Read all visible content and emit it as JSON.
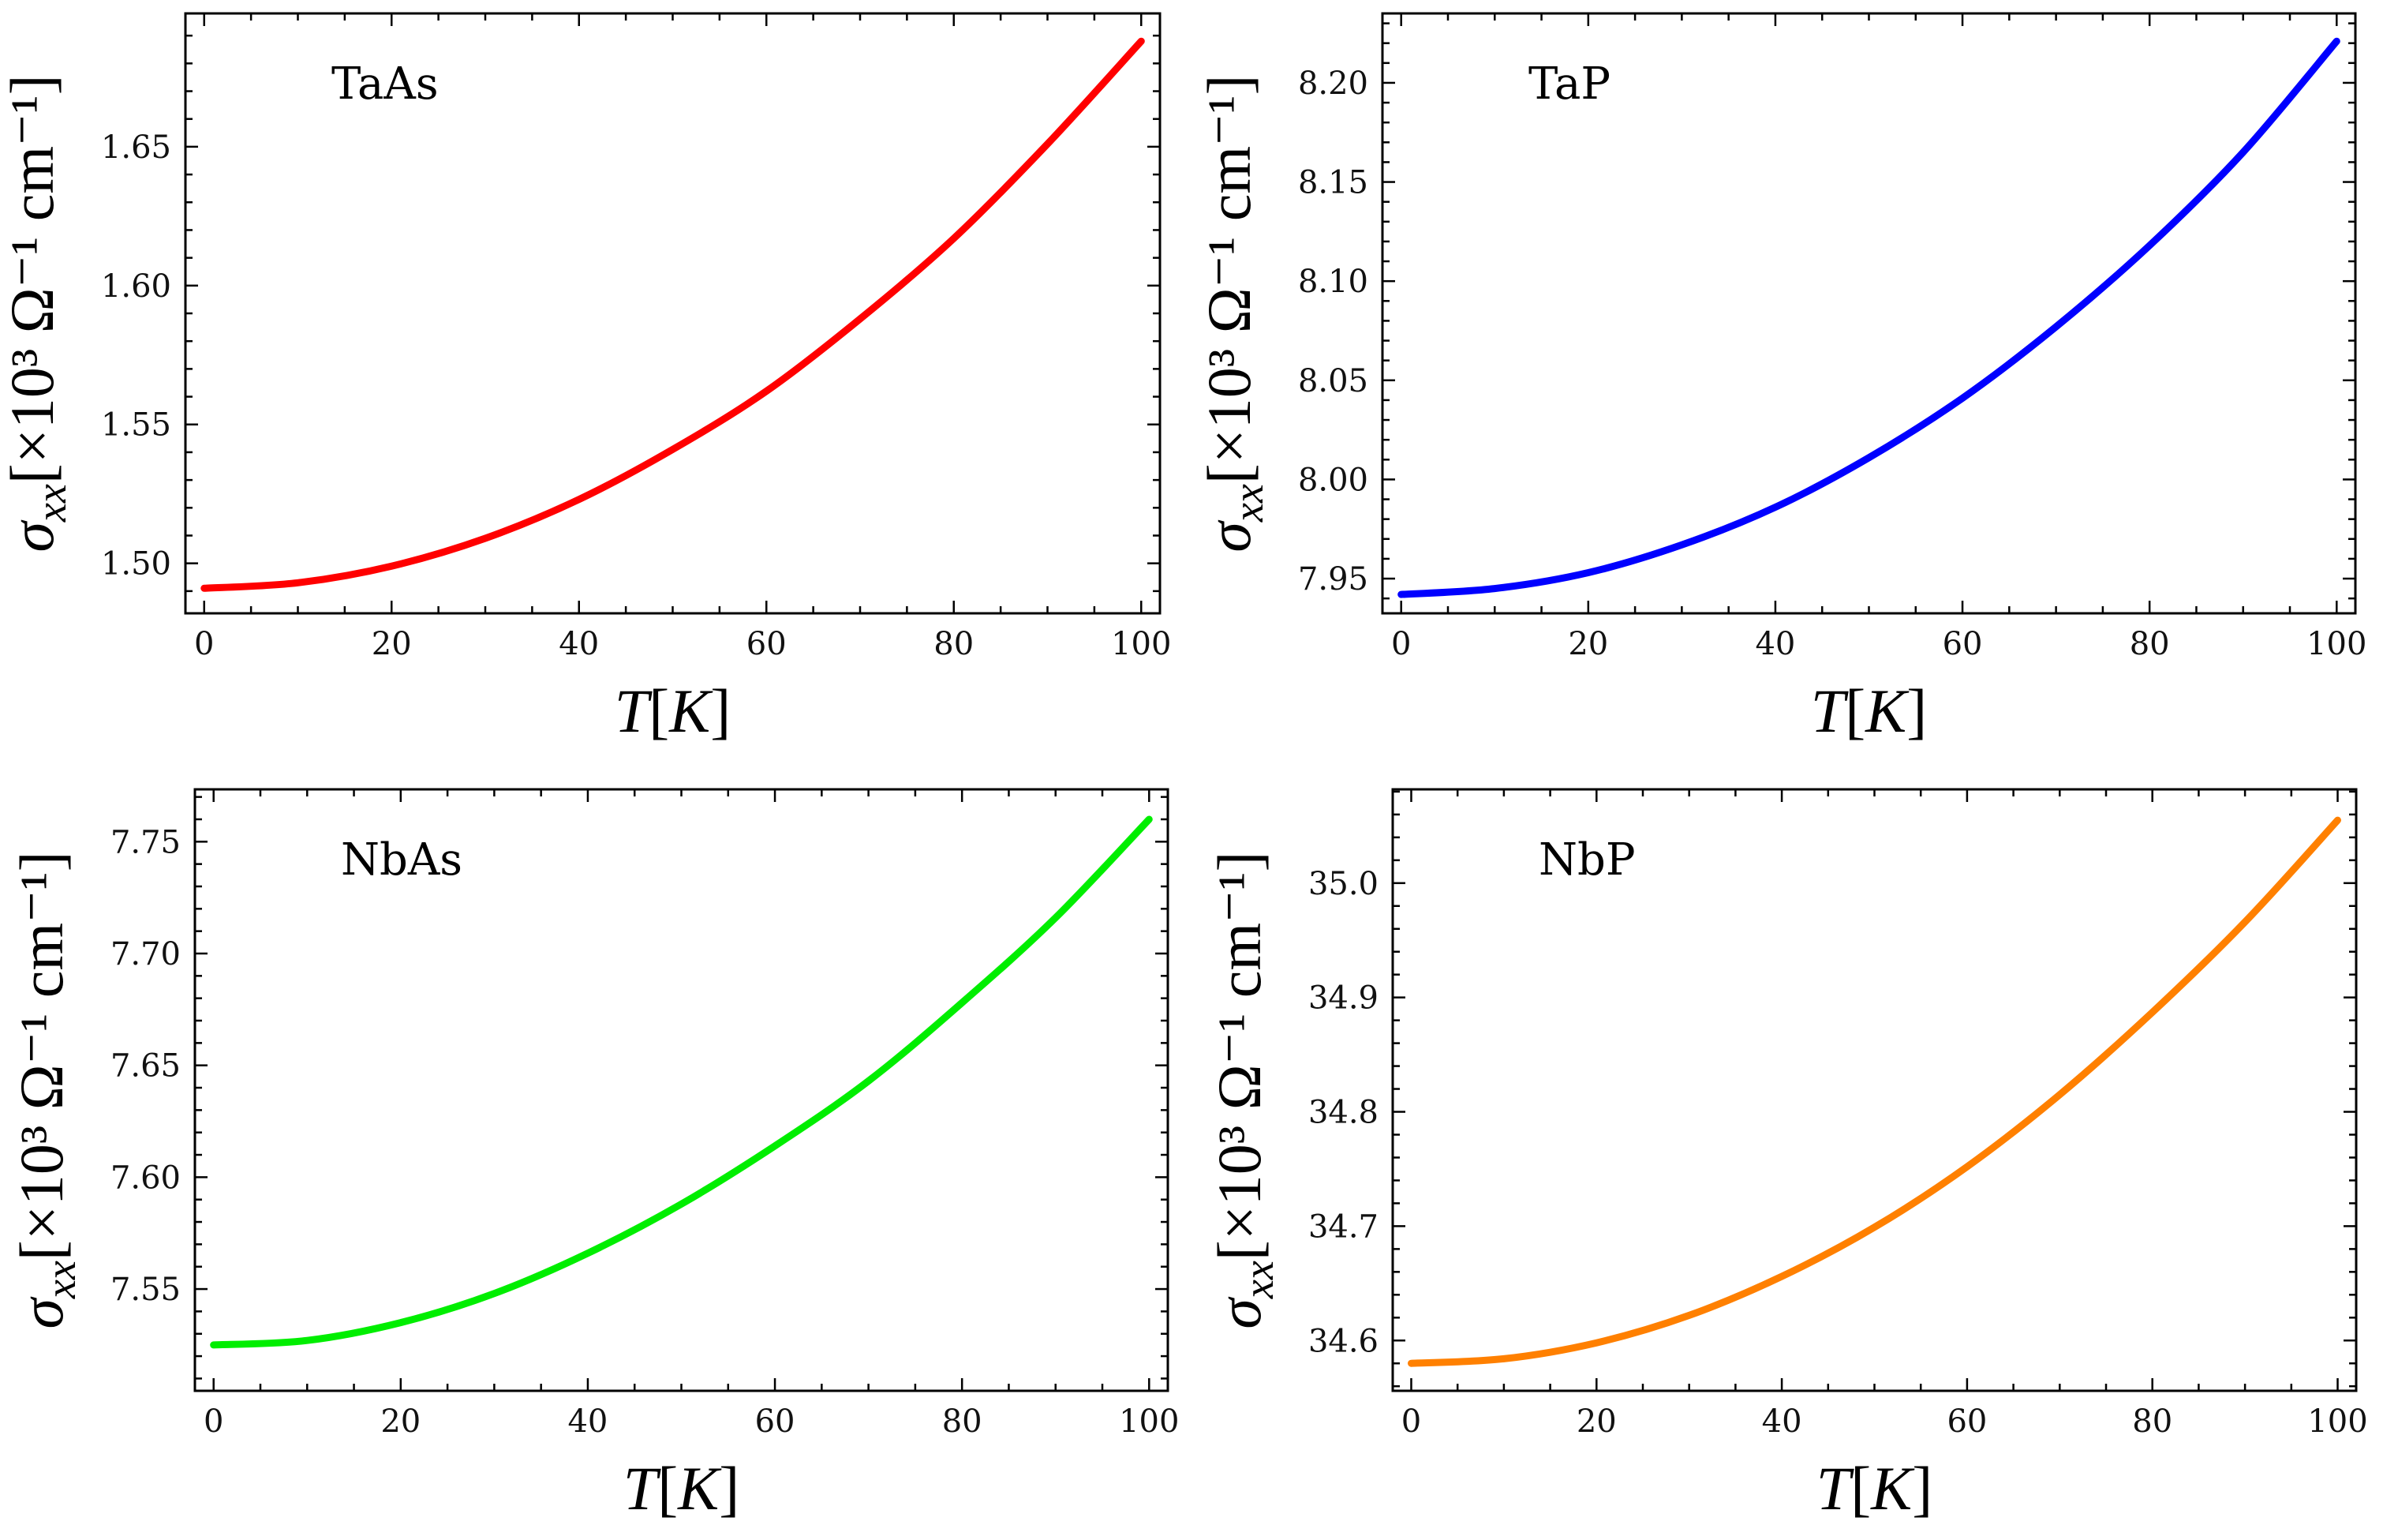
{
  "chart_data": [
    {
      "type": "line",
      "title": "TaAs",
      "xlabel_var": "T",
      "xlabel_unit": "K",
      "ylabel_sym": "σ",
      "ylabel_sub": "xx",
      "ylabel_unit": "[×10³ Ω⁻¹ cm⁻¹]",
      "xlim": [
        -2,
        102
      ],
      "ylim": [
        1.482,
        1.698
      ],
      "xticks": [
        0,
        20,
        40,
        60,
        80,
        100
      ],
      "xtick_labels": [
        "0",
        "20",
        "40",
        "60",
        "80",
        "100"
      ],
      "yticks": [
        1.5,
        1.55,
        1.6,
        1.65
      ],
      "ytick_labels": [
        "1.50",
        "1.55",
        "1.60",
        "1.65"
      ],
      "series": [
        {
          "name": "TaAs",
          "color": "#ff0000",
          "x": [
            0,
            10,
            20,
            30,
            40,
            50,
            60,
            70,
            80,
            90,
            100
          ],
          "y": [
            1.491,
            1.493,
            1.499,
            1.509,
            1.523,
            1.541,
            1.562,
            1.588,
            1.617,
            1.651,
            1.688
          ]
        }
      ]
    },
    {
      "type": "line",
      "title": "TaP",
      "xlabel_var": "T",
      "xlabel_unit": "K",
      "ylabel_sym": "σ",
      "ylabel_sub": "xx",
      "ylabel_unit": "[×10³ Ω⁻¹ cm⁻¹]",
      "xlim": [
        -2,
        102
      ],
      "ylim": [
        7.9325,
        8.235
      ],
      "xticks": [
        0,
        20,
        40,
        60,
        80,
        100
      ],
      "xtick_labels": [
        "0",
        "20",
        "40",
        "60",
        "80",
        "100"
      ],
      "yticks": [
        7.95,
        8.0,
        8.05,
        8.1,
        8.15,
        8.2
      ],
      "ytick_labels": [
        "7.95",
        "8.00",
        "8.05",
        "8.10",
        "8.15",
        "8.20"
      ],
      "series": [
        {
          "name": "TaP",
          "color": "#0000ff",
          "x": [
            0,
            10,
            20,
            30,
            40,
            50,
            60,
            70,
            80,
            90,
            100
          ],
          "y": [
            7.942,
            7.945,
            7.953,
            7.967,
            7.986,
            8.011,
            8.041,
            8.077,
            8.118,
            8.165,
            8.221
          ]
        }
      ]
    },
    {
      "type": "line",
      "title": "NbAs",
      "xlabel_var": "T",
      "xlabel_unit": "K",
      "ylabel_sym": "σ",
      "ylabel_sub": "xx",
      "ylabel_unit": "[×10³ Ω⁻¹ cm⁻¹]",
      "xlim": [
        -2,
        102
      ],
      "ylim": [
        7.5045,
        7.7734
      ],
      "xticks": [
        0,
        20,
        40,
        60,
        80,
        100
      ],
      "xtick_labels": [
        "0",
        "20",
        "40",
        "60",
        "80",
        "100"
      ],
      "yticks": [
        7.55,
        7.6,
        7.65,
        7.7,
        7.75
      ],
      "ytick_labels": [
        "7.55",
        "7.60",
        "7.65",
        "7.70",
        "7.75"
      ],
      "series": [
        {
          "name": "NbAs",
          "color": "#00ee00",
          "x": [
            0,
            10,
            20,
            30,
            40,
            50,
            60,
            70,
            80,
            90,
            100
          ],
          "y": [
            7.525,
            7.527,
            7.535,
            7.548,
            7.566,
            7.588,
            7.614,
            7.643,
            7.678,
            7.716,
            7.76
          ]
        }
      ]
    },
    {
      "type": "line",
      "title": "NbP",
      "xlabel_var": "T",
      "xlabel_unit": "K",
      "ylabel_sym": "σ",
      "ylabel_sub": "xx",
      "ylabel_unit": "[×10³ Ω⁻¹ cm⁻¹]",
      "xlim": [
        -2,
        102
      ],
      "ylim": [
        34.556,
        35.082
      ],
      "xticks": [
        0,
        20,
        40,
        60,
        80,
        100
      ],
      "xtick_labels": [
        "0",
        "20",
        "40",
        "60",
        "80",
        "100"
      ],
      "yticks": [
        34.6,
        34.7,
        34.8,
        34.9,
        35.0
      ],
      "ytick_labels": [
        "34.6",
        "34.7",
        "34.8",
        "34.9",
        "35.0"
      ],
      "series": [
        {
          "name": "NbP",
          "color": "#ff8000",
          "x": [
            0,
            10,
            20,
            30,
            40,
            50,
            60,
            70,
            80,
            90,
            100
          ],
          "y": [
            34.58,
            34.584,
            34.598,
            34.622,
            34.656,
            34.699,
            34.752,
            34.815,
            34.887,
            34.966,
            35.055
          ]
        }
      ]
    }
  ]
}
